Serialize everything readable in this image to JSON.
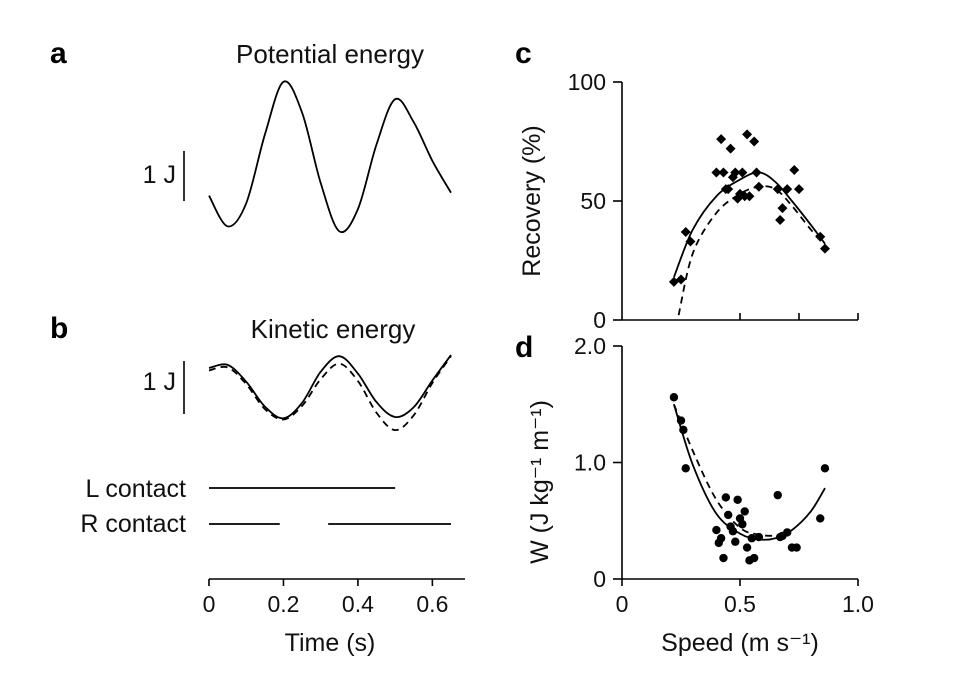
{
  "panels": {
    "a": {
      "letter": "a",
      "title": "Potential energy",
      "scale_label": "1 J"
    },
    "b": {
      "letter": "b",
      "title": "Kinetic energy",
      "scale_label": "1 J"
    },
    "c": {
      "letter": "c"
    },
    "d": {
      "letter": "d"
    }
  },
  "contacts": {
    "left_label": "L contact",
    "right_label": "R contact"
  },
  "chart_data": [
    {
      "id": "a",
      "type": "line",
      "title": "Potential energy",
      "scale_bar": "1 J",
      "xlabel": "Time (s)",
      "xlim": [
        0,
        0.65
      ],
      "ylim": [
        -1.12,
        0.55
      ],
      "series": [
        {
          "style": "solid",
          "x": [
            0,
            0.05,
            0.1,
            0.15,
            0.2,
            0.25,
            0.3,
            0.35,
            0.4,
            0.45,
            0.5,
            0.55,
            0.6,
            0.65
          ],
          "y": [
            -0.68,
            -1.0,
            -0.76,
            -0.05,
            0.5,
            0.18,
            -0.55,
            -1.05,
            -0.82,
            -0.15,
            0.32,
            0.08,
            -0.32,
            -0.65
          ]
        }
      ]
    },
    {
      "id": "b",
      "type": "line",
      "title": "Kinetic energy",
      "scale_bar": "1 J",
      "xlabel": "Time (s)",
      "xlim": [
        0,
        0.65
      ],
      "ylim": [
        -0.9,
        0.55
      ],
      "series": [
        {
          "style": "solid",
          "x": [
            0,
            0.05,
            0.1,
            0.15,
            0.2,
            0.25,
            0.3,
            0.35,
            0.4,
            0.45,
            0.5,
            0.55,
            0.6,
            0.65
          ],
          "y": [
            0.26,
            0.31,
            0.04,
            -0.36,
            -0.55,
            -0.3,
            0.2,
            0.45,
            0.17,
            -0.29,
            -0.53,
            -0.37,
            0.06,
            0.47
          ]
        },
        {
          "style": "dashed",
          "x": [
            0,
            0.05,
            0.1,
            0.15,
            0.2,
            0.25,
            0.3,
            0.35,
            0.4,
            0.45,
            0.5,
            0.55,
            0.6,
            0.65
          ],
          "y": [
            0.22,
            0.27,
            0.0,
            -0.4,
            -0.57,
            -0.35,
            0.08,
            0.33,
            0.05,
            -0.46,
            -0.74,
            -0.5,
            0.02,
            0.45
          ]
        }
      ]
    },
    {
      "id": "contacts",
      "type": "line",
      "xlabel": "Time (s)",
      "xlim": [
        0,
        0.65
      ],
      "xticks": [
        0,
        0.2,
        0.4,
        0.6
      ],
      "xtick_labels": [
        "0",
        "0.2",
        "0.4",
        "0.6"
      ],
      "series": [
        {
          "name": "L contact",
          "segments": [
            [
              0,
              0.5
            ]
          ]
        },
        {
          "name": "R contact",
          "segments": [
            [
              0,
              0.19
            ],
            [
              0.32,
              0.65
            ]
          ]
        }
      ]
    },
    {
      "id": "c",
      "type": "scatter",
      "ylabel": "Recovery (%)",
      "xlim": [
        0,
        1.0
      ],
      "ylim": [
        0,
        100
      ],
      "yticks": [
        0,
        50,
        100
      ],
      "ytick_labels": [
        "0",
        "50",
        "100"
      ],
      "points": [
        [
          0.22,
          16
        ],
        [
          0.25,
          17
        ],
        [
          0.27,
          37
        ],
        [
          0.29,
          33
        ],
        [
          0.4,
          62
        ],
        [
          0.42,
          76
        ],
        [
          0.43,
          62
        ],
        [
          0.44,
          55
        ],
        [
          0.45,
          55
        ],
        [
          0.46,
          72
        ],
        [
          0.47,
          60
        ],
        [
          0.48,
          62
        ],
        [
          0.49,
          51
        ],
        [
          0.5,
          53
        ],
        [
          0.51,
          62
        ],
        [
          0.52,
          52
        ],
        [
          0.53,
          78
        ],
        [
          0.54,
          52
        ],
        [
          0.56,
          75
        ],
        [
          0.57,
          62
        ],
        [
          0.58,
          56
        ],
        [
          0.66,
          55
        ],
        [
          0.67,
          42
        ],
        [
          0.68,
          47
        ],
        [
          0.7,
          55
        ],
        [
          0.73,
          63
        ],
        [
          0.75,
          55
        ],
        [
          0.84,
          35
        ],
        [
          0.86,
          30
        ]
      ],
      "fit_solid": {
        "x": [
          0.22,
          0.3,
          0.4,
          0.5,
          0.58,
          0.65,
          0.72,
          0.8,
          0.86
        ],
        "y": [
          18,
          38,
          52,
          59,
          62,
          58,
          50,
          40,
          32
        ]
      },
      "fit_dashed": {
        "x": [
          0.24,
          0.3,
          0.4,
          0.5,
          0.58,
          0.65,
          0.72,
          0.8,
          0.86
        ],
        "y": [
          2,
          28,
          45,
          53,
          56,
          55,
          48,
          38,
          32
        ]
      }
    },
    {
      "id": "d",
      "type": "scatter",
      "xlabel": "Speed (m s⁻¹)",
      "ylabel": "W (J kg⁻¹ m⁻¹)",
      "xlim": [
        0,
        1.0
      ],
      "ylim": [
        0,
        2.0
      ],
      "xticks": [
        0,
        0.5,
        1.0
      ],
      "xtick_labels": [
        "0",
        "0.5",
        "1.0"
      ],
      "yticks": [
        0,
        1.0,
        2.0
      ],
      "ytick_labels": [
        "0",
        "1.0",
        "2.0"
      ],
      "points": [
        [
          0.22,
          1.56
        ],
        [
          0.25,
          1.36
        ],
        [
          0.26,
          1.28
        ],
        [
          0.27,
          0.95
        ],
        [
          0.4,
          0.42
        ],
        [
          0.41,
          0.31
        ],
        [
          0.42,
          0.35
        ],
        [
          0.43,
          0.18
        ],
        [
          0.44,
          0.7
        ],
        [
          0.45,
          0.55
        ],
        [
          0.46,
          0.45
        ],
        [
          0.47,
          0.41
        ],
        [
          0.48,
          0.32
        ],
        [
          0.49,
          0.68
        ],
        [
          0.5,
          0.52
        ],
        [
          0.51,
          0.47
        ],
        [
          0.52,
          0.58
        ],
        [
          0.53,
          0.27
        ],
        [
          0.54,
          0.16
        ],
        [
          0.55,
          0.35
        ],
        [
          0.56,
          0.18
        ],
        [
          0.58,
          0.36
        ],
        [
          0.66,
          0.72
        ],
        [
          0.67,
          0.36
        ],
        [
          0.68,
          0.37
        ],
        [
          0.7,
          0.4
        ],
        [
          0.72,
          0.27
        ],
        [
          0.74,
          0.27
        ],
        [
          0.84,
          0.52
        ],
        [
          0.86,
          0.95
        ]
      ],
      "fit_solid": {
        "x": [
          0.22,
          0.3,
          0.4,
          0.5,
          0.58,
          0.65,
          0.72,
          0.8,
          0.86
        ],
        "y": [
          1.5,
          0.98,
          0.56,
          0.39,
          0.34,
          0.35,
          0.42,
          0.58,
          0.78
        ]
      },
      "fit_dashed": {
        "x": [
          0.22,
          0.3,
          0.4,
          0.5,
          0.58,
          0.65
        ],
        "y": [
          1.5,
          1.1,
          0.68,
          0.44,
          0.38,
          0.37
        ]
      }
    }
  ]
}
